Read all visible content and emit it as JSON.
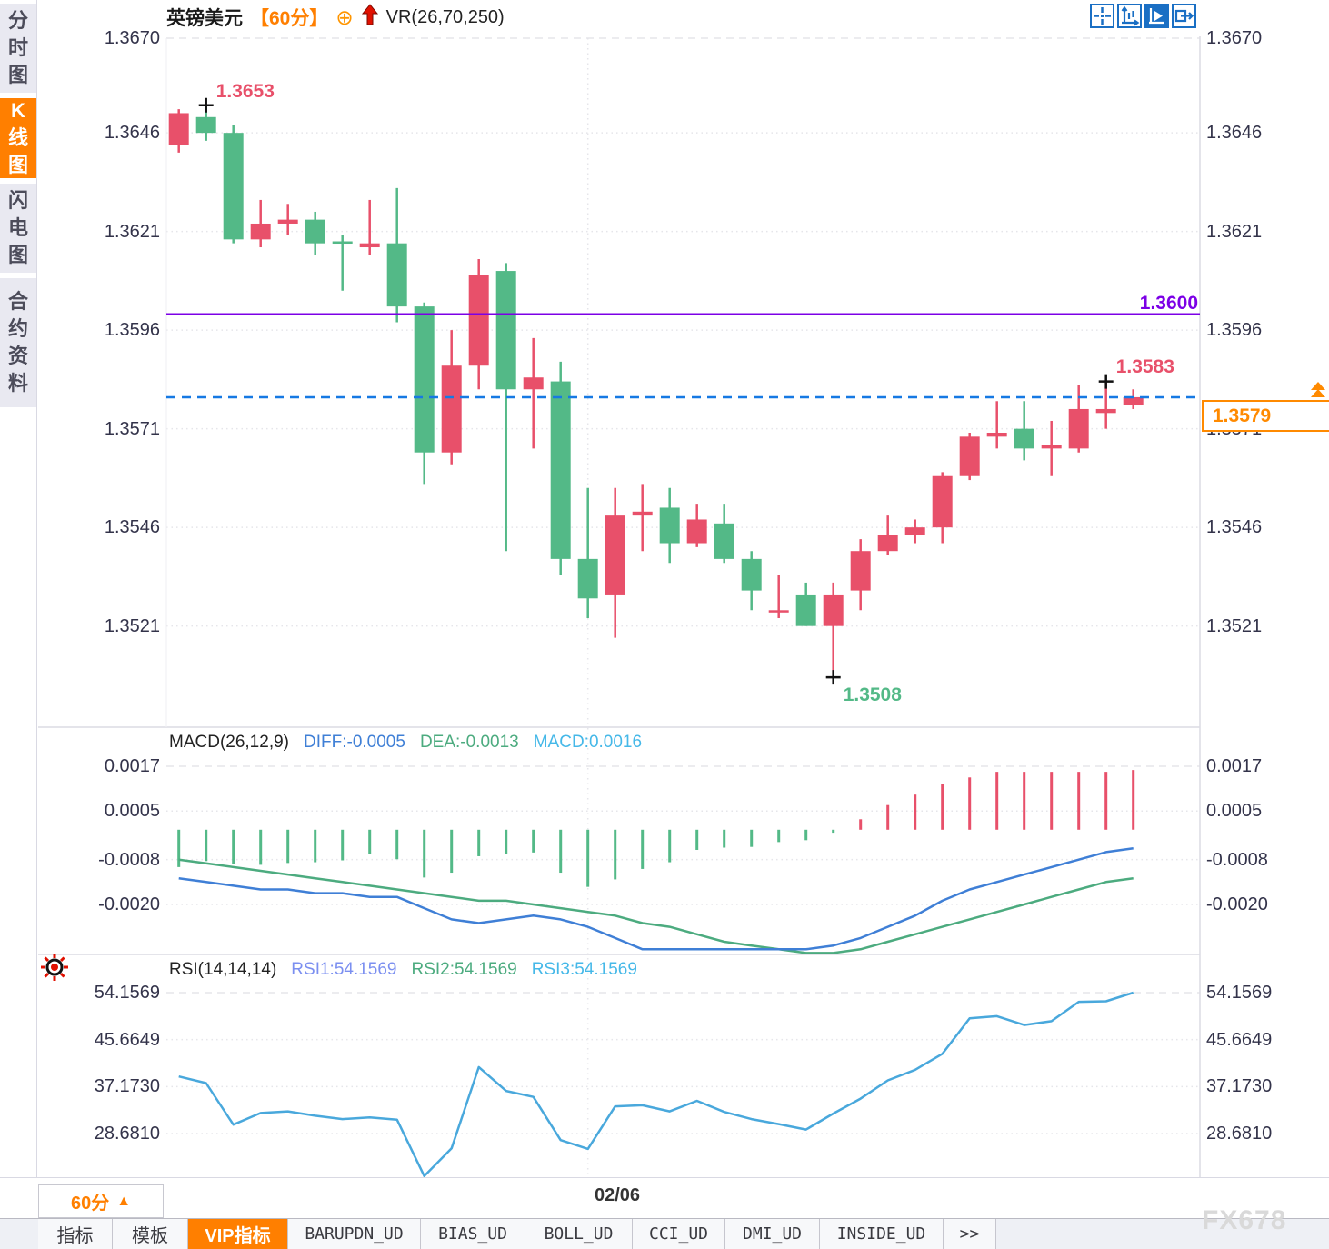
{
  "palette": {
    "up_red": "#e8506a",
    "down_green": "#53b987",
    "purple_line": "#7c00e6",
    "current_blue": "#1679e3",
    "orange": "#ff7f00",
    "diff_blue": "#3f7fd6",
    "dea_green": "#4cab7f",
    "macd_cyan": "#45b8e8",
    "rsi_line": "#49a8dc",
    "rsi1_blue": "#7b8ff0",
    "toolbar_blue": "#1a6fc4",
    "grid": "#e5e5ea"
  },
  "sidebar": {
    "items": [
      {
        "label": "分时图",
        "selected": false
      },
      {
        "label": "K线图",
        "selected": true
      },
      {
        "label": "闪电图",
        "selected": false
      },
      {
        "label": "合约资料",
        "selected": false
      }
    ]
  },
  "header": {
    "symbol": "英镑美元",
    "period": "【60分】",
    "circle_plus_icon": "⊕",
    "arrow_up_icon": "red-up-arrow",
    "indicator": "VR(26,70,250)"
  },
  "toolbar": {
    "buttons": [
      {
        "name": "crosshair",
        "active": false
      },
      {
        "name": "fit-axes",
        "active": false
      },
      {
        "name": "auto-scroll",
        "active": true
      },
      {
        "name": "goto-latest",
        "active": false
      }
    ]
  },
  "main_pane": {
    "y_axis_labels": [
      "1.3670",
      "1.3646",
      "1.3621",
      "1.3596",
      "1.3571",
      "1.3546",
      "1.3521"
    ],
    "y_values": [
      1.367,
      1.3646,
      1.3621,
      1.3596,
      1.3571,
      1.3546,
      1.3521
    ],
    "purple_line": {
      "price": 1.36,
      "label": "1.3600"
    },
    "current_price": {
      "price": 1.3579,
      "label": "1.3579"
    },
    "high_marker": {
      "index": 1,
      "price": 1.3653,
      "label": "1.3653",
      "color": "#e8506a"
    },
    "low_marker": {
      "index": 24,
      "price": 1.3508,
      "label": "1.3508",
      "color": "#53b987"
    },
    "swing_high_marker": {
      "index": 34,
      "price": 1.3583,
      "label": "1.3583",
      "color": "#e8506a"
    }
  },
  "macd_pane": {
    "title": "MACD(26,12,9)",
    "diff_label": "DIFF:-0.0005",
    "dea_label": "DEA:-0.0013",
    "macd_label": "MACD:0.0016",
    "y_axis_labels": [
      "0.0017",
      "0.0005",
      "-0.0008",
      "-0.0020"
    ],
    "y_values": [
      0.0017,
      0.0005,
      -0.0008,
      -0.002
    ]
  },
  "rsi_pane": {
    "title": "RSI(14,14,14)",
    "rsi1_label": "RSI1:54.1569",
    "rsi2_label": "RSI2:54.1569",
    "rsi3_label": "RSI3:54.1569",
    "y_axis_labels": [
      "54.1569",
      "45.6649",
      "37.1730",
      "28.6810"
    ],
    "y_values": [
      54.1569,
      45.6649,
      37.173,
      28.681
    ]
  },
  "x_axis": {
    "date_label": "02/06",
    "date_gridline_index": 15,
    "period_label": "60分",
    "period_arrow": "▲"
  },
  "tabs": {
    "items": [
      {
        "label": "指标",
        "selected": false,
        "mono": false
      },
      {
        "label": "模板",
        "selected": false,
        "mono": false
      },
      {
        "label": "VIP指标",
        "selected": true,
        "mono": false
      },
      {
        "label": "BARUPDN_UD",
        "selected": false,
        "mono": true
      },
      {
        "label": "BIAS_UD",
        "selected": false,
        "mono": true
      },
      {
        "label": "BOLL_UD",
        "selected": false,
        "mono": true
      },
      {
        "label": "CCI_UD",
        "selected": false,
        "mono": true
      },
      {
        "label": "DMI_UD",
        "selected": false,
        "mono": true
      },
      {
        "label": "INSIDE_UD",
        "selected": false,
        "mono": true
      },
      {
        "label": ">>",
        "selected": false,
        "mono": true
      }
    ]
  },
  "watermark": "FX678",
  "chart_data": {
    "type": "candlestick",
    "ohlc_order": [
      "open",
      "high",
      "low",
      "close"
    ],
    "candles": [
      [
        1.3643,
        1.3652,
        1.3641,
        1.3651
      ],
      [
        1.365,
        1.3653,
        1.3644,
        1.3646
      ],
      [
        1.3646,
        1.3648,
        1.3618,
        1.3619
      ],
      [
        1.3619,
        1.3629,
        1.3617,
        1.3623
      ],
      [
        1.3623,
        1.3628,
        1.362,
        1.3624
      ],
      [
        1.3624,
        1.3626,
        1.3615,
        1.3618
      ],
      [
        1.36185,
        1.362,
        1.3606,
        1.3618
      ],
      [
        1.3617,
        1.3629,
        1.3615,
        1.3618
      ],
      [
        1.3618,
        1.3632,
        1.3598,
        1.3602
      ],
      [
        1.3602,
        1.3603,
        1.3557,
        1.3565
      ],
      [
        1.3565,
        1.3596,
        1.3562,
        1.3587
      ],
      [
        1.3587,
        1.3614,
        1.3581,
        1.361
      ],
      [
        1.3611,
        1.3613,
        1.354,
        1.3581
      ],
      [
        1.3581,
        1.3594,
        1.3566,
        1.3584
      ],
      [
        1.3583,
        1.3588,
        1.3534,
        1.3538
      ],
      [
        1.3538,
        1.3556,
        1.3523,
        1.3528
      ],
      [
        1.3529,
        1.3556,
        1.3518,
        1.3549
      ],
      [
        1.3549,
        1.3557,
        1.354,
        1.355
      ],
      [
        1.3551,
        1.3556,
        1.3537,
        1.3542
      ],
      [
        1.3542,
        1.3552,
        1.3541,
        1.3548
      ],
      [
        1.3547,
        1.3552,
        1.3537,
        1.3538
      ],
      [
        1.3538,
        1.354,
        1.3525,
        1.353
      ],
      [
        1.35245,
        1.3534,
        1.3523,
        1.3525
      ],
      [
        1.3529,
        1.3532,
        1.3521,
        1.3521
      ],
      [
        1.3521,
        1.3532,
        1.3508,
        1.3529
      ],
      [
        1.353,
        1.3543,
        1.3525,
        1.354
      ],
      [
        1.354,
        1.3549,
        1.3539,
        1.3544
      ],
      [
        1.3544,
        1.3548,
        1.3542,
        1.3546
      ],
      [
        1.3546,
        1.356,
        1.3542,
        1.3559
      ],
      [
        1.3559,
        1.357,
        1.3558,
        1.3569
      ],
      [
        1.3569,
        1.3578,
        1.3566,
        1.357
      ],
      [
        1.3571,
        1.3578,
        1.3563,
        1.3566
      ],
      [
        1.3566,
        1.3573,
        1.3559,
        1.3567
      ],
      [
        1.3566,
        1.3582,
        1.3565,
        1.3576
      ],
      [
        1.3575,
        1.3583,
        1.3571,
        1.3576
      ],
      [
        1.3577,
        1.3581,
        1.3576,
        1.3579
      ]
    ],
    "macd": {
      "hist": [
        -0.001,
        -0.00084,
        -0.00092,
        -0.00094,
        -0.00089,
        -0.00087,
        -0.00082,
        -0.00064,
        -0.00079,
        -0.00128,
        -0.00115,
        -0.00071,
        -0.00064,
        -0.00061,
        -0.00115,
        -0.00153,
        -0.00133,
        -0.00105,
        -0.00087,
        -0.00054,
        -0.00048,
        -0.00046,
        -0.00033,
        -0.00028,
        -8e-05,
        0.00028,
        0.00066,
        0.00094,
        0.00122,
        0.0014,
        0.00155,
        0.00155,
        0.00155,
        0.00155,
        0.00155,
        0.0016
      ],
      "diff": [
        -0.0013,
        -0.0014,
        -0.0015,
        -0.0016,
        -0.0016,
        -0.0017,
        -0.0017,
        -0.0018,
        -0.0018,
        -0.0021,
        -0.0024,
        -0.0025,
        -0.0024,
        -0.0023,
        -0.0024,
        -0.0026,
        -0.0029,
        -0.0032,
        -0.0032,
        -0.0032,
        -0.0032,
        -0.0032,
        -0.0032,
        -0.0032,
        -0.0031,
        -0.0029,
        -0.0026,
        -0.0023,
        -0.0019,
        -0.0016,
        -0.0014,
        -0.0012,
        -0.001,
        -0.0008,
        -0.0006,
        -0.0005
      ],
      "dea": [
        -0.0008,
        -0.0009,
        -0.001,
        -0.0011,
        -0.0012,
        -0.0013,
        -0.0014,
        -0.0015,
        -0.0016,
        -0.0017,
        -0.0018,
        -0.0019,
        -0.0019,
        -0.002,
        -0.0021,
        -0.0022,
        -0.0023,
        -0.0025,
        -0.0026,
        -0.0028,
        -0.003,
        -0.0031,
        -0.0032,
        -0.0033,
        -0.0033,
        -0.0032,
        -0.003,
        -0.0028,
        -0.0026,
        -0.0024,
        -0.0022,
        -0.002,
        -0.0018,
        -0.0016,
        -0.0014,
        -0.0013
      ]
    },
    "rsi": [
      39.0,
      37.8,
      30.3,
      32.4,
      32.7,
      31.9,
      31.3,
      31.6,
      31.2,
      21.0,
      26.0,
      40.7,
      36.4,
      35.3,
      27.5,
      25.9,
      33.6,
      33.8,
      32.7,
      34.6,
      32.6,
      31.3,
      30.4,
      29.4,
      32.3,
      35.0,
      38.3,
      40.2,
      43.1,
      49.5,
      49.9,
      48.3,
      49.0,
      52.5,
      52.6,
      54.1569
    ]
  }
}
